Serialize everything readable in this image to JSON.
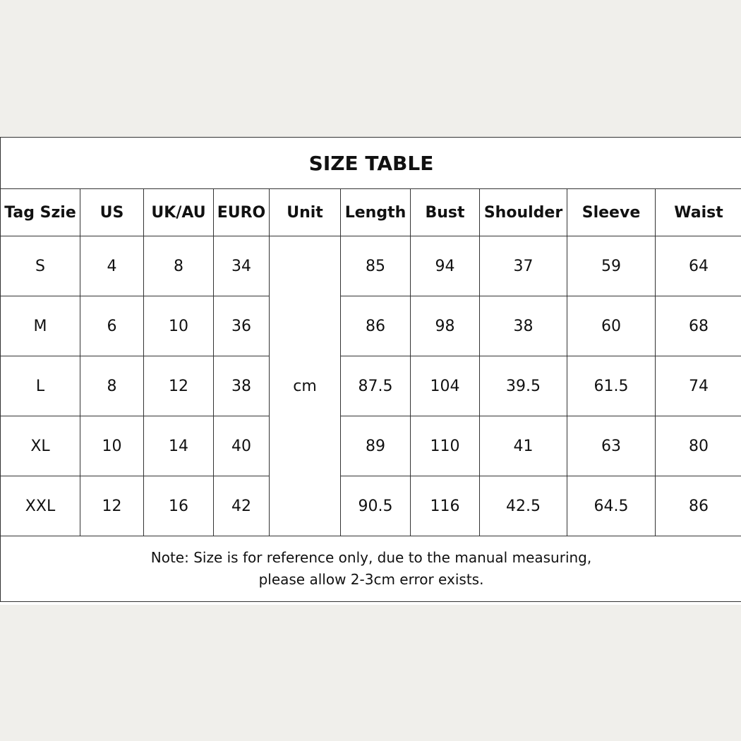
{
  "title": "SIZE TABLE",
  "columns": [
    "Tag Szie",
    "US",
    "UK/AU",
    "EURO",
    "Unit",
    "Length",
    "Bust",
    "Shoulder",
    "Sleeve",
    "Waist"
  ],
  "unit": "cm",
  "rows": [
    [
      "S",
      "4",
      "8",
      "34",
      "85",
      "94",
      "37",
      "59",
      "64"
    ],
    [
      "M",
      "6",
      "10",
      "36",
      "86",
      "98",
      "38",
      "60",
      "68"
    ],
    [
      "L",
      "8",
      "12",
      "38",
      "87.5",
      "104",
      "39.5",
      "61.5",
      "74"
    ],
    [
      "XL",
      "10",
      "14",
      "40",
      "89",
      "110",
      "41",
      "63",
      "80"
    ],
    [
      "XXL",
      "12",
      "16",
      "42",
      "90.5",
      "116",
      "42.5",
      "64.5",
      "86"
    ]
  ],
  "note": {
    "line1": "Note: Size is for reference only, due to the manual measuring,",
    "line2": "please allow 2-3cm error exists."
  }
}
